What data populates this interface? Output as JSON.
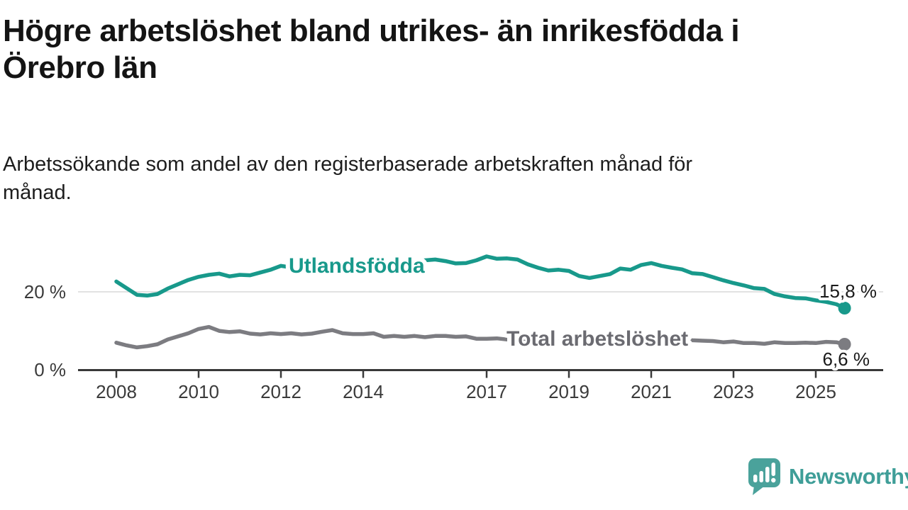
{
  "page": {
    "title": "Högre arbetslöshet bland utrikes- än inrikesfödda i Örebro län",
    "subtitle": "Arbetssökande som andel av den registerbaserade arbetskraften månad för månad."
  },
  "branding": {
    "logo_text": "Newsworthy",
    "logo_icon": "speech-bubble-with-bar-chart-and-exclamation",
    "logo_color": "#4aa29b"
  },
  "chart_data": {
    "type": "line",
    "unit": "%",
    "title": "Högre arbetslöshet bland utrikes- än inrikesfödda i Örebro län",
    "subtitle": "Arbetssökande som andel av den registerbaserade arbetskraften månad för månad.",
    "xlabel": "",
    "ylabel": "",
    "xlim": [
      2008.0,
      2025.7
    ],
    "ylim": [
      0,
      30
    ],
    "grid": "horizontal line at 20 % only",
    "legend_position": "inline labels on lines",
    "x_tick_years": [
      2008,
      2010,
      2012,
      2014,
      2017,
      2019,
      2021,
      2023,
      2025
    ],
    "y_ticks": [
      {
        "value": 0,
        "label": "0 %"
      },
      {
        "value": 20,
        "label": "20 %"
      }
    ],
    "x": [
      2008.0,
      2008.25,
      2008.5,
      2008.75,
      2009.0,
      2009.25,
      2009.5,
      2009.75,
      2010.0,
      2010.25,
      2010.5,
      2010.75,
      2011.0,
      2011.25,
      2011.5,
      2011.75,
      2012.0,
      2012.25,
      2012.5,
      2012.75,
      2013.0,
      2013.25,
      2013.5,
      2013.75,
      2014.0,
      2014.25,
      2014.5,
      2014.75,
      2015.0,
      2015.25,
      2015.5,
      2015.75,
      2016.0,
      2016.25,
      2016.5,
      2016.75,
      2017.0,
      2017.25,
      2017.5,
      2017.75,
      2018.0,
      2018.25,
      2018.5,
      2018.75,
      2019.0,
      2019.25,
      2019.5,
      2019.75,
      2020.0,
      2020.25,
      2020.5,
      2020.75,
      2021.0,
      2021.25,
      2021.5,
      2021.75,
      2022.0,
      2022.25,
      2022.5,
      2022.75,
      2023.0,
      2023.25,
      2023.5,
      2023.75,
      2024.0,
      2024.25,
      2024.5,
      2024.75,
      2025.0,
      2025.25,
      2025.5,
      2025.7
    ],
    "series": [
      {
        "name": "Utlandsfödda",
        "color": "#18998b",
        "end_value": 15.8,
        "end_label": "15,8 %",
        "values": [
          22.6,
          20.9,
          19.2,
          19.0,
          19.4,
          20.8,
          21.9,
          23.0,
          23.8,
          24.3,
          24.6,
          23.9,
          24.3,
          24.2,
          24.9,
          25.6,
          26.6,
          26.2,
          26.5,
          26.8,
          27.0,
          26.7,
          26.9,
          27.2,
          27.4,
          27.2,
          27.5,
          27.7,
          27.9,
          27.7,
          28.0,
          28.2,
          27.8,
          27.2,
          27.3,
          28.0,
          29.0,
          28.4,
          28.5,
          28.2,
          27.0,
          26.1,
          25.4,
          25.6,
          25.3,
          24.0,
          23.5,
          24.0,
          24.5,
          25.9,
          25.6,
          26.8,
          27.3,
          26.6,
          26.1,
          25.7,
          24.7,
          24.5,
          23.7,
          22.9,
          22.2,
          21.6,
          20.9,
          20.7,
          19.4,
          18.8,
          18.4,
          18.3,
          17.8,
          17.4,
          16.8,
          15.8
        ]
      },
      {
        "name": "Total arbetslöshet",
        "color": "#7c7c81",
        "end_value": 6.6,
        "end_label": "6,6 %",
        "values": [
          7.0,
          6.3,
          5.8,
          6.1,
          6.6,
          7.8,
          8.6,
          9.4,
          10.5,
          11.0,
          10.0,
          9.7,
          9.9,
          9.3,
          9.1,
          9.4,
          9.2,
          9.4,
          9.1,
          9.3,
          9.8,
          10.2,
          9.4,
          9.2,
          9.2,
          9.4,
          8.5,
          8.7,
          8.5,
          8.7,
          8.4,
          8.7,
          8.7,
          8.5,
          8.6,
          8.0,
          8.0,
          8.1,
          7.8,
          7.6,
          7.5,
          7.4,
          7.2,
          7.3,
          7.2,
          7.1,
          7.0,
          7.2,
          7.5,
          8.8,
          9.2,
          9.0,
          8.8,
          8.4,
          8.0,
          7.8,
          7.6,
          7.5,
          7.4,
          7.1,
          7.3,
          6.9,
          6.9,
          6.7,
          7.1,
          6.9,
          6.9,
          7.0,
          6.9,
          7.2,
          7.1,
          6.6
        ]
      }
    ]
  }
}
